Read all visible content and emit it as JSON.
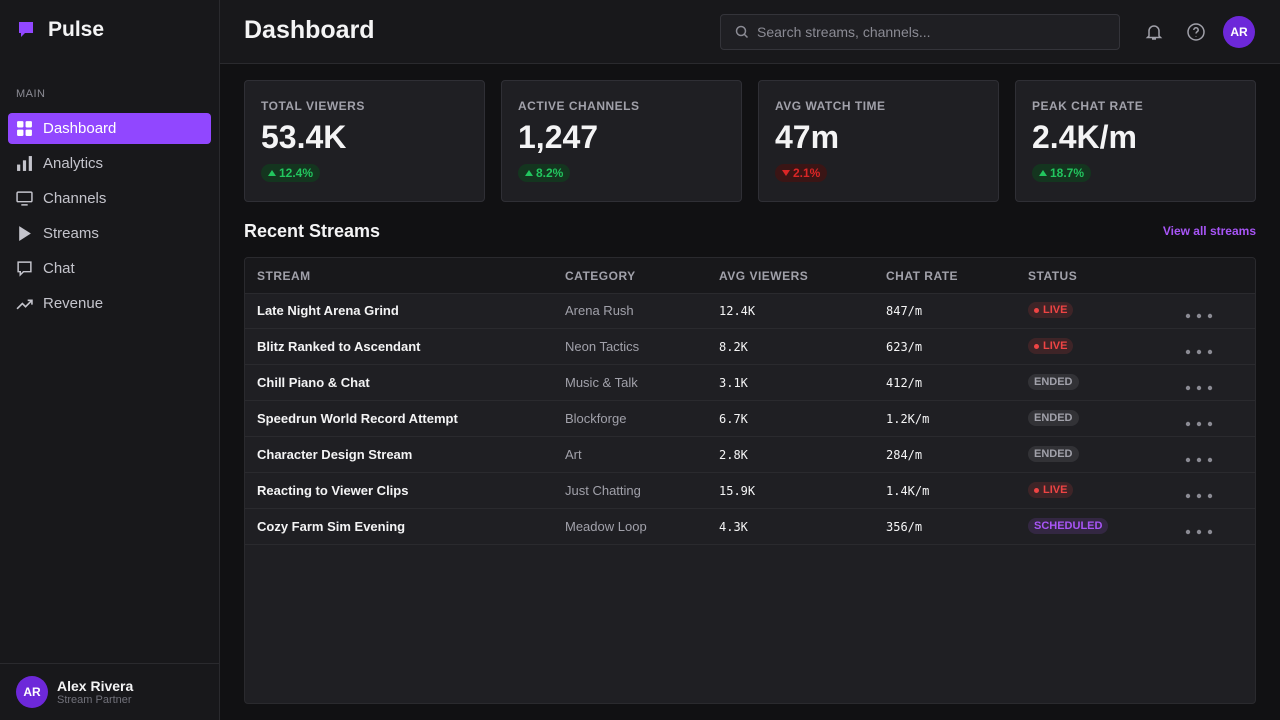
{
  "sidebar": {
    "brand": "Pulse",
    "section": "MAIN",
    "nav": [
      "Dashboard",
      "Analytics",
      "Channels",
      "Streams",
      "Chat",
      "Revenue"
    ],
    "user": {
      "initials": "AR",
      "name": "Alex Rivera",
      "role": "Stream Partner"
    }
  },
  "header": {
    "title": "Dashboard",
    "search": "Search streams, channels...",
    "avatar": "AR"
  },
  "stats": [
    {
      "label": "TOTAL VIEWERS",
      "value": "53.4K",
      "change": "12.4%",
      "direction": "up"
    },
    {
      "label": "ACTIVE CHANNELS",
      "value": "1,247",
      "change": "8.2%",
      "direction": "up"
    },
    {
      "label": "AVG WATCH TIME",
      "value": "47m",
      "change": "2.1%",
      "direction": "down"
    },
    {
      "label": "PEAK CHAT RATE",
      "value": "2.4K/m",
      "change": "18.7%",
      "direction": "up"
    }
  ],
  "recent": {
    "title": "Recent Streams",
    "link": "View all streams",
    "columns": [
      "STREAM",
      "CATEGORY",
      "AVG VIEWERS",
      "CHAT RATE",
      "STATUS"
    ],
    "rows": [
      {
        "stream": "Late Night Arena Grind",
        "category": "Arena Rush",
        "viewers": "12.4K",
        "chat": "847/m",
        "status": "LIVE",
        "status_color": "#ef4444",
        "dot": true
      },
      {
        "stream": "Blitz Ranked to Ascendant",
        "category": "Neon Tactics",
        "viewers": "8.2K",
        "chat": "623/m",
        "status": "LIVE",
        "status_color": "#ef4444",
        "dot": true
      },
      {
        "stream": "Chill Piano & Chat",
        "category": "Music & Talk",
        "viewers": "3.1K",
        "chat": "412/m",
        "status": "ENDED",
        "status_color": "#a1a1aa",
        "dot": false
      },
      {
        "stream": "Speedrun World Record Attempt",
        "category": "Blockforge",
        "viewers": "6.7K",
        "chat": "1.2K/m",
        "status": "ENDED",
        "status_color": "#a1a1aa",
        "dot": false
      },
      {
        "stream": "Character Design Stream",
        "category": "Art",
        "viewers": "2.8K",
        "chat": "284/m",
        "status": "ENDED",
        "status_color": "#a1a1aa",
        "dot": false
      },
      {
        "stream": "Reacting to Viewer Clips",
        "category": "Just Chatting",
        "viewers": "15.9K",
        "chat": "1.4K/m",
        "status": "LIVE",
        "status_color": "#ef4444",
        "dot": true
      },
      {
        "stream": "Cozy Farm Sim Evening",
        "category": "Meadow Loop",
        "viewers": "4.3K",
        "chat": "356/m",
        "status": "SCHEDULED",
        "status_color": "#a855f7",
        "dot": false
      }
    ]
  }
}
